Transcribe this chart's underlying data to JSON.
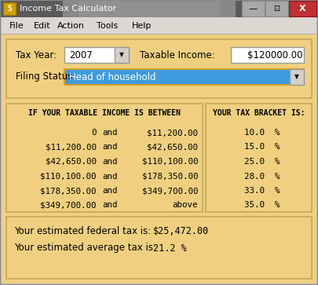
{
  "title": "Income Tax Calculator",
  "bg_titlebar": "#6e6e6e",
  "bg_menu": "#dbd8d2",
  "bg_main": "#f0d080",
  "bg_panel": "#f0d080",
  "bg_panel_border": "#c8b878",
  "menu_items": [
    "File",
    "Edit",
    "Action",
    "Tools",
    "Help"
  ],
  "tax_year_label": "Tax Year:",
  "tax_year_value": "2007",
  "taxable_income_label": "Taxable Income:",
  "taxable_income_value": "$120000.00",
  "filing_status_label": "Filing Status:",
  "filing_status_value": "Head of household",
  "filing_status_bg": "#3d9bdd",
  "table_header_left": "IF YOUR TAXABLE INCOME IS BETWEEN",
  "table_header_right": "YOUR TAX BRACKET IS:",
  "brackets": [
    [
      "0",
      "and",
      "$11,200.00",
      "10.0  %"
    ],
    [
      "$11,200.00",
      "and",
      "$42,650.00",
      "15.0  %"
    ],
    [
      "$42,650.00",
      "and",
      "$110,100.00",
      "25.0  %"
    ],
    [
      "$110,100.00",
      "and",
      "$178,350.00",
      "28.0  %"
    ],
    [
      "$178,350.00",
      "and",
      "$349,700.00",
      "33.0  %"
    ],
    [
      "$349,700.00",
      "and",
      "above",
      "35.0  %"
    ]
  ],
  "result1_label": "Your estimated federal tax is:",
  "result1_value": "$25,472.00",
  "result2_label": "Your estimated average tax is:",
  "result2_value": "21.2 %"
}
